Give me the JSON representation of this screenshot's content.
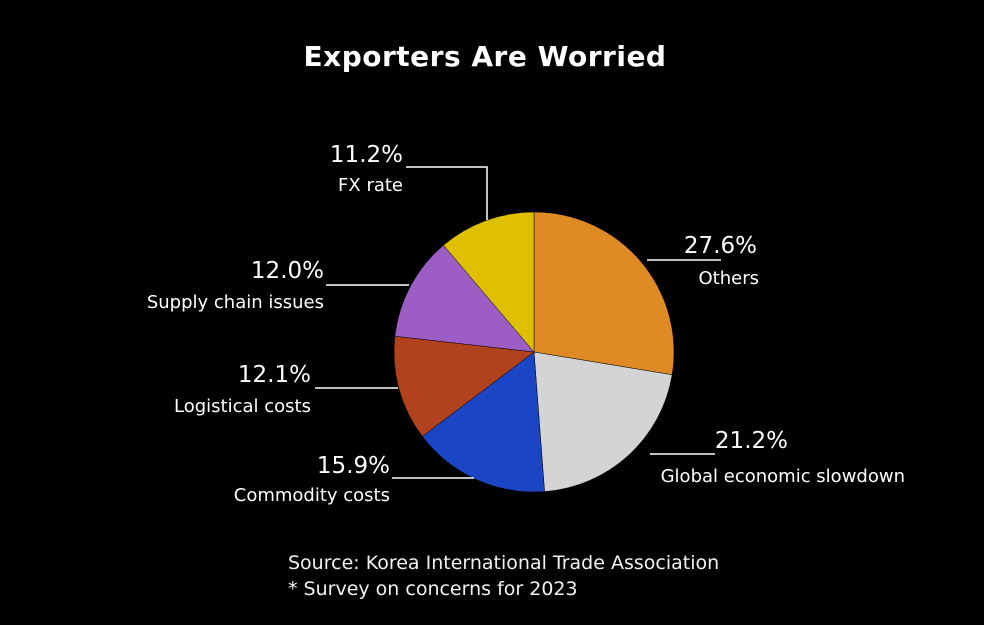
{
  "chart_data": {
    "type": "pie",
    "title": "Exporters Are Worried",
    "unit": "%",
    "slices": [
      {
        "label": "Others",
        "value": 27.6,
        "value_label": "27.6%",
        "color": "#e08a26"
      },
      {
        "label": "Global economic slowdown",
        "value": 21.2,
        "value_label": "21.2%",
        "color": "#d4d4d4"
      },
      {
        "label": "Commodity costs",
        "value": 15.9,
        "value_label": "15.9%",
        "color": "#1a45c4"
      },
      {
        "label": "Logistical costs",
        "value": 12.1,
        "value_label": "12.1%",
        "color": "#b2411d"
      },
      {
        "label": "Supply chain issues",
        "value": 12.0,
        "value_label": "12.0%",
        "color": "#9c5ec4"
      },
      {
        "label": "FX rate",
        "value": 11.2,
        "value_label": "11.2%",
        "color": "#dfc000"
      }
    ]
  },
  "footnotes": {
    "source": "Source: Korea International Trade Association",
    "survey": "* Survey on concerns for 2023"
  }
}
